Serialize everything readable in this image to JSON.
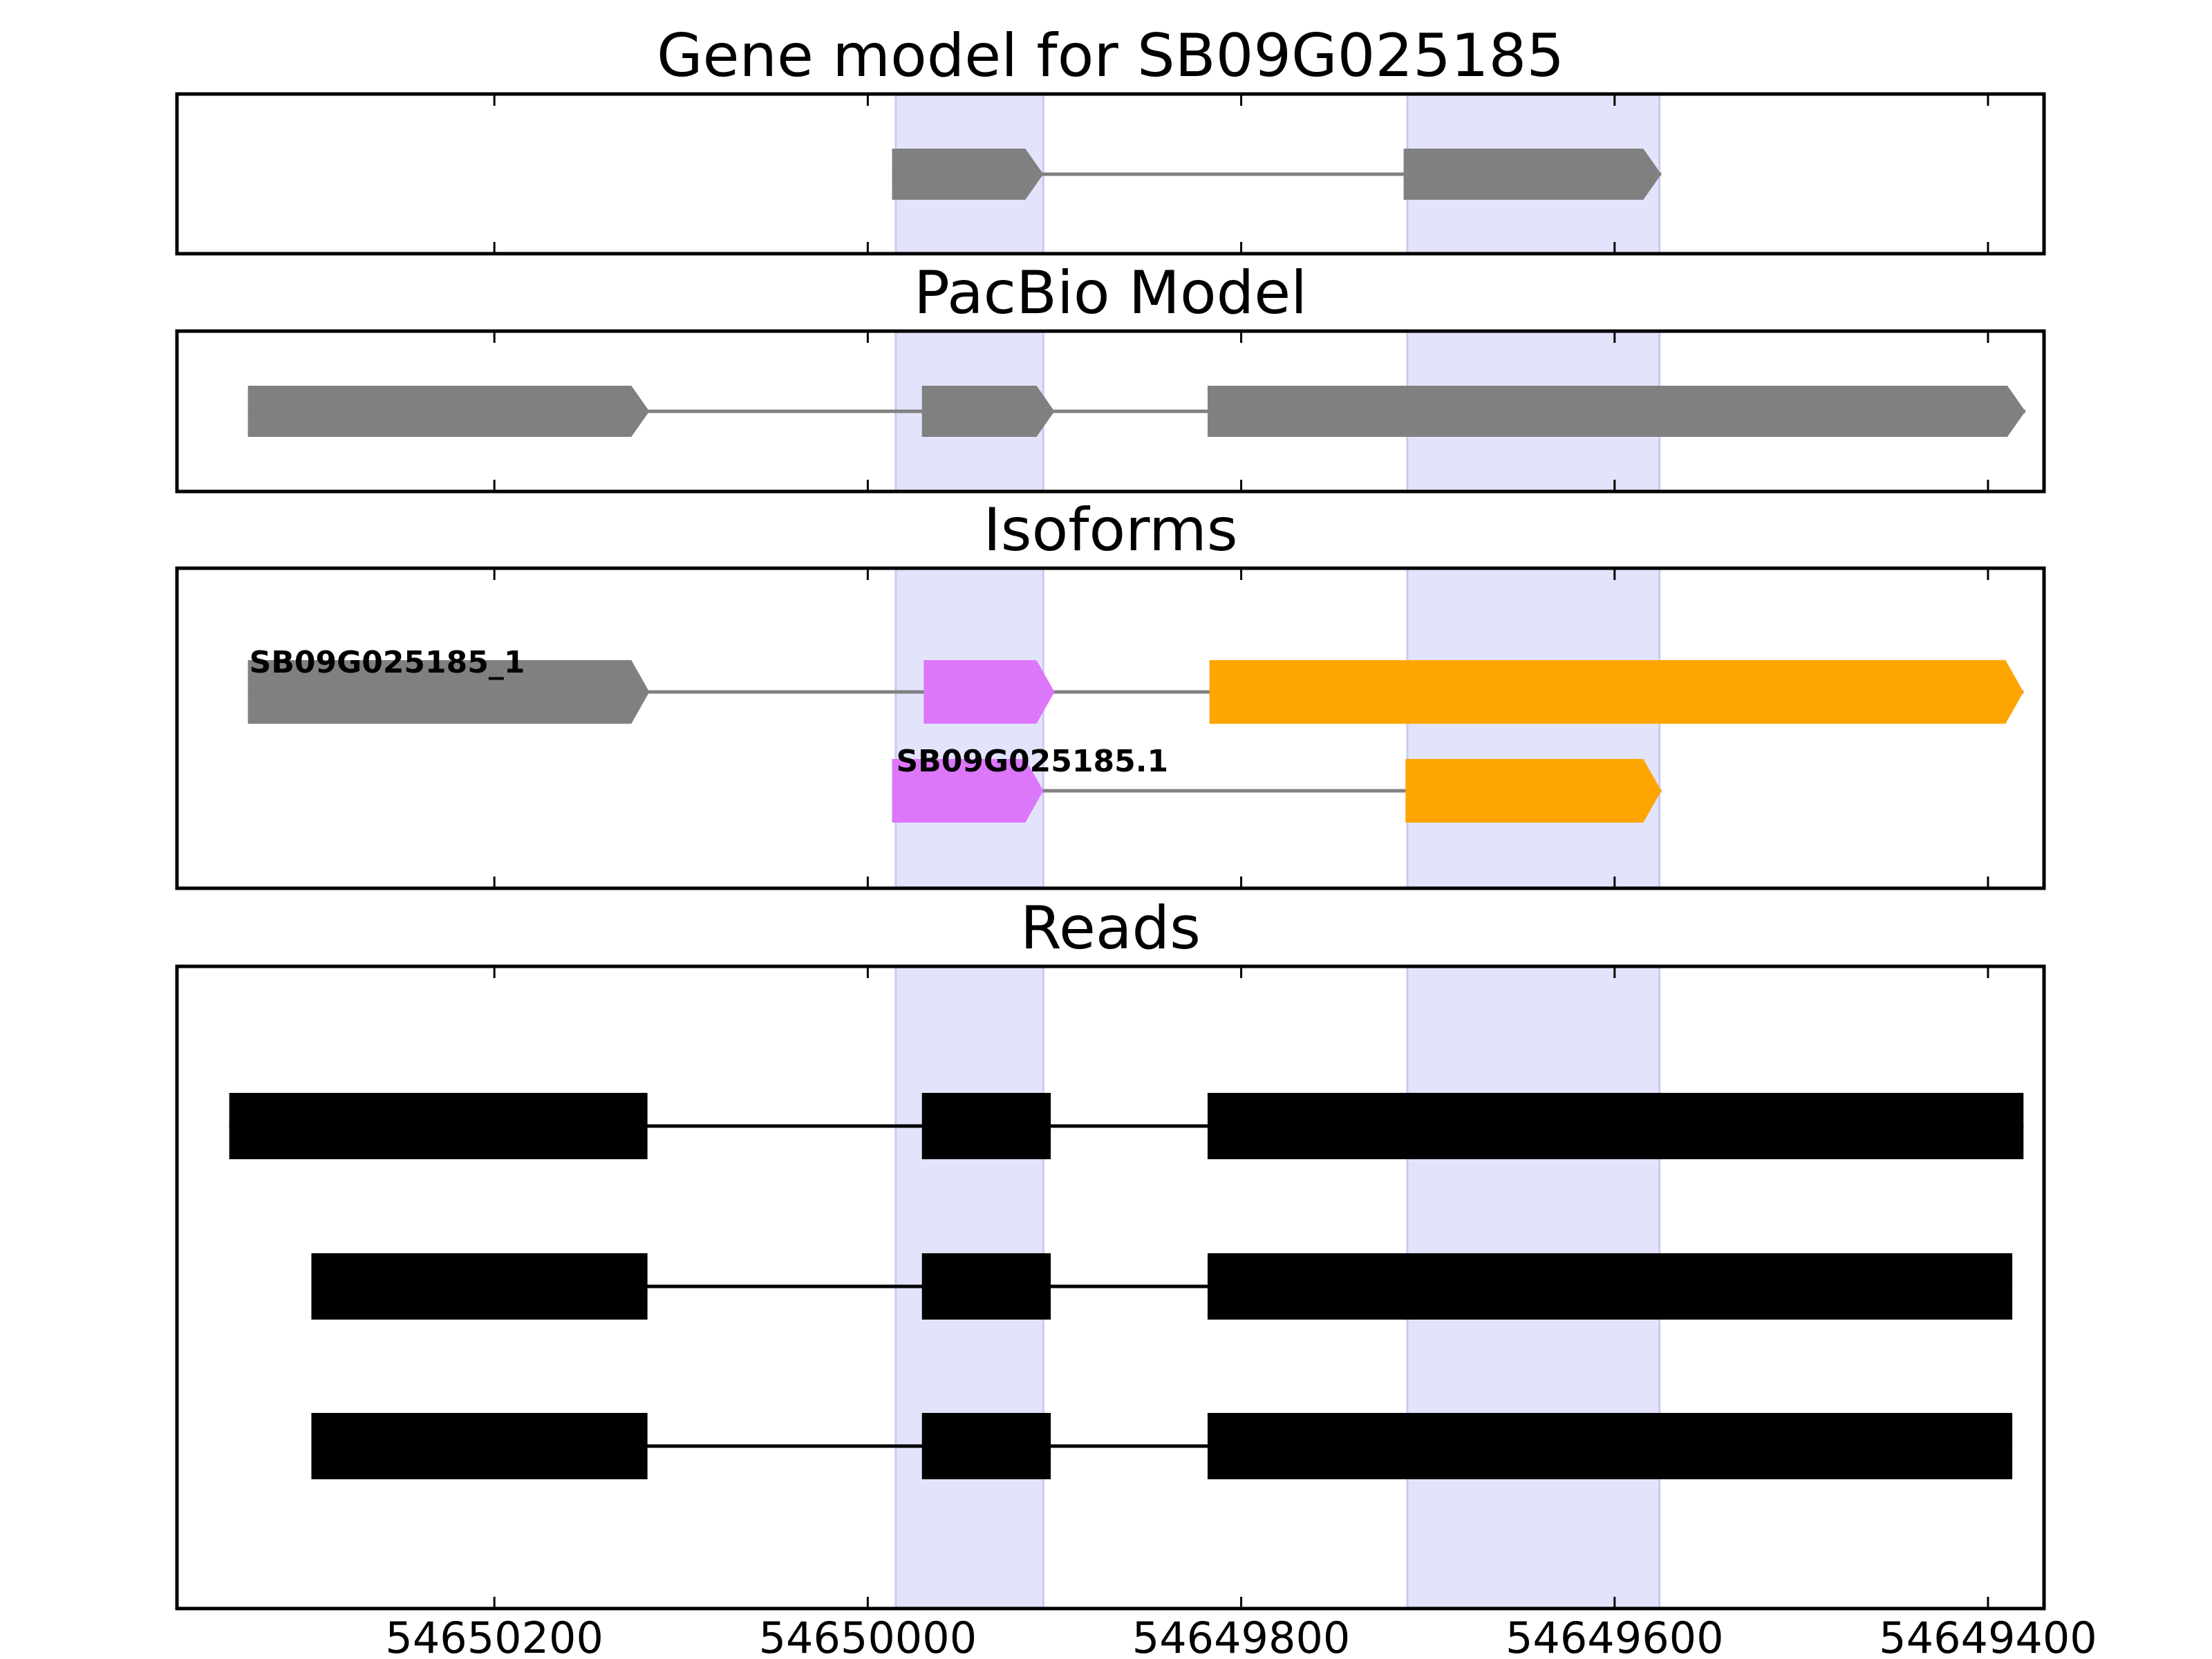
{
  "chart_data": {
    "type": "gene-structure",
    "x_axis": {
      "reversed": true,
      "xlim": [
        54650370,
        54649370
      ],
      "ticks": [
        54650200,
        54650000,
        54649800,
        54649600,
        54649400
      ],
      "tick_labels": [
        "54650200",
        "54650000",
        "54649800",
        "54649600",
        "54649400"
      ]
    },
    "highlight_regions": [
      {
        "start": 54649985,
        "end": 54649906
      },
      {
        "start": 54649711,
        "end": 54649576
      }
    ],
    "colors": {
      "highlight": "#e3e3fc",
      "gene_model": "#808080",
      "isoform_a": "#dd77fa",
      "isoform_b": "#fea500",
      "read": "#000000",
      "intron": "#808080"
    },
    "panels": [
      {
        "key": "gene_model",
        "title": "Gene model for SB09G025185",
        "rows": [
          {
            "label": "",
            "exons": [
              {
                "start": 54649987,
                "end": 54649906,
                "color": "#808080"
              },
              {
                "start": 54649713,
                "end": 54649575,
                "color": "#808080"
              }
            ]
          }
        ]
      },
      {
        "key": "pacbio",
        "title": "PacBio Model",
        "rows": [
          {
            "label": "",
            "exons": [
              {
                "start": 54650332,
                "end": 54650117,
                "color": "#808080"
              },
              {
                "start": 54649971,
                "end": 54649900,
                "color": "#808080"
              },
              {
                "start": 54649818,
                "end": 54649380,
                "color": "#808080"
              }
            ]
          }
        ]
      },
      {
        "key": "isoforms",
        "title": "Isoforms",
        "rows": [
          {
            "label": "SB09G025185_1",
            "exons": [
              {
                "start": 54650332,
                "end": 54650117,
                "color": "#808080"
              },
              {
                "start": 54649970,
                "end": 54649900,
                "color": "#dd77fa"
              },
              {
                "start": 54649817,
                "end": 54649381,
                "color": "#fea500"
              }
            ]
          },
          {
            "label": "SB09G025185.1",
            "exons": [
              {
                "start": 54649987,
                "end": 54649906,
                "color": "#dd77fa"
              },
              {
                "start": 54649712,
                "end": 54649575,
                "color": "#fea500"
              }
            ]
          }
        ]
      },
      {
        "key": "reads",
        "title": "Reads",
        "rows": [
          {
            "label": "",
            "exons": [
              {
                "start": 54650342,
                "end": 54650118,
                "color": "#000000"
              },
              {
                "start": 54649971,
                "end": 54649902,
                "color": "#000000"
              },
              {
                "start": 54649818,
                "end": 54649381,
                "color": "#000000"
              }
            ]
          },
          {
            "label": "",
            "exons": [
              {
                "start": 54650298,
                "end": 54650118,
                "color": "#000000"
              },
              {
                "start": 54649971,
                "end": 54649902,
                "color": "#000000"
              },
              {
                "start": 54649818,
                "end": 54649387,
                "color": "#000000"
              }
            ]
          },
          {
            "label": "",
            "exons": [
              {
                "start": 54650298,
                "end": 54650118,
                "color": "#000000"
              },
              {
                "start": 54649971,
                "end": 54649902,
                "color": "#000000"
              },
              {
                "start": 54649818,
                "end": 54649387,
                "color": "#000000"
              }
            ]
          }
        ]
      }
    ]
  }
}
